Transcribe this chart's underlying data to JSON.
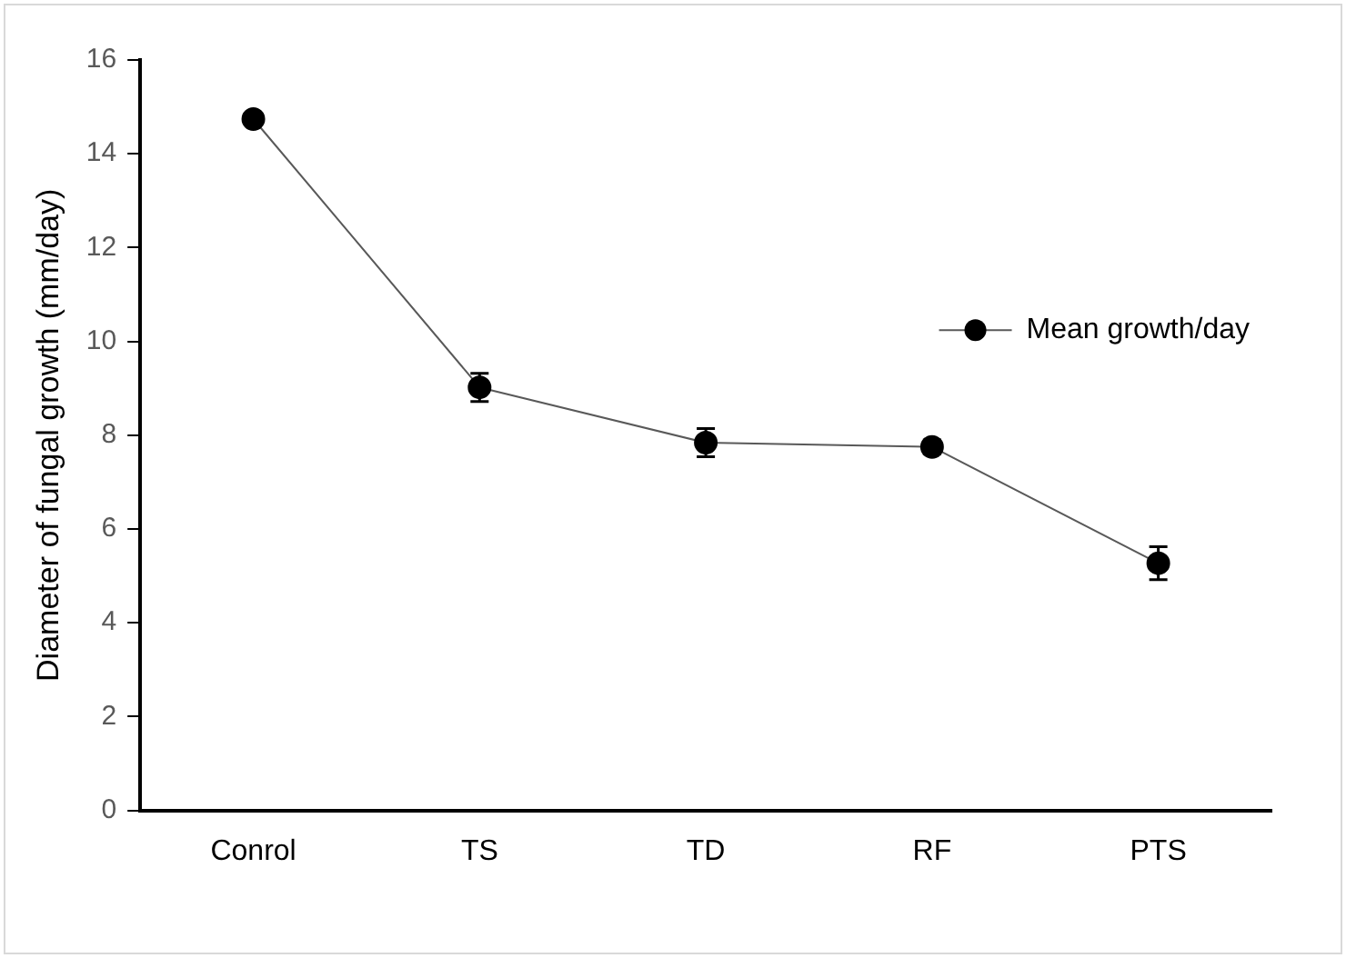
{
  "chart_data": {
    "type": "line",
    "ylabel": "Diameter of fungal growth (mm/day)",
    "categories": [
      "Conrol",
      "TS",
      "TD",
      "RF",
      "PTS"
    ],
    "series": [
      {
        "name": "Mean growth/day",
        "color": "#000000",
        "values": [
          14.74,
          9.02,
          7.84,
          7.75,
          5.27
        ],
        "errors": [
          0.1,
          0.3,
          0.3,
          0.15,
          0.35
        ]
      }
    ],
    "ylim": [
      0,
      16
    ],
    "yticks": [
      0,
      2,
      4,
      6,
      8,
      10,
      12,
      14,
      16
    ],
    "grid": false,
    "legend": "right",
    "marker": "circle",
    "line_style": "solid"
  }
}
